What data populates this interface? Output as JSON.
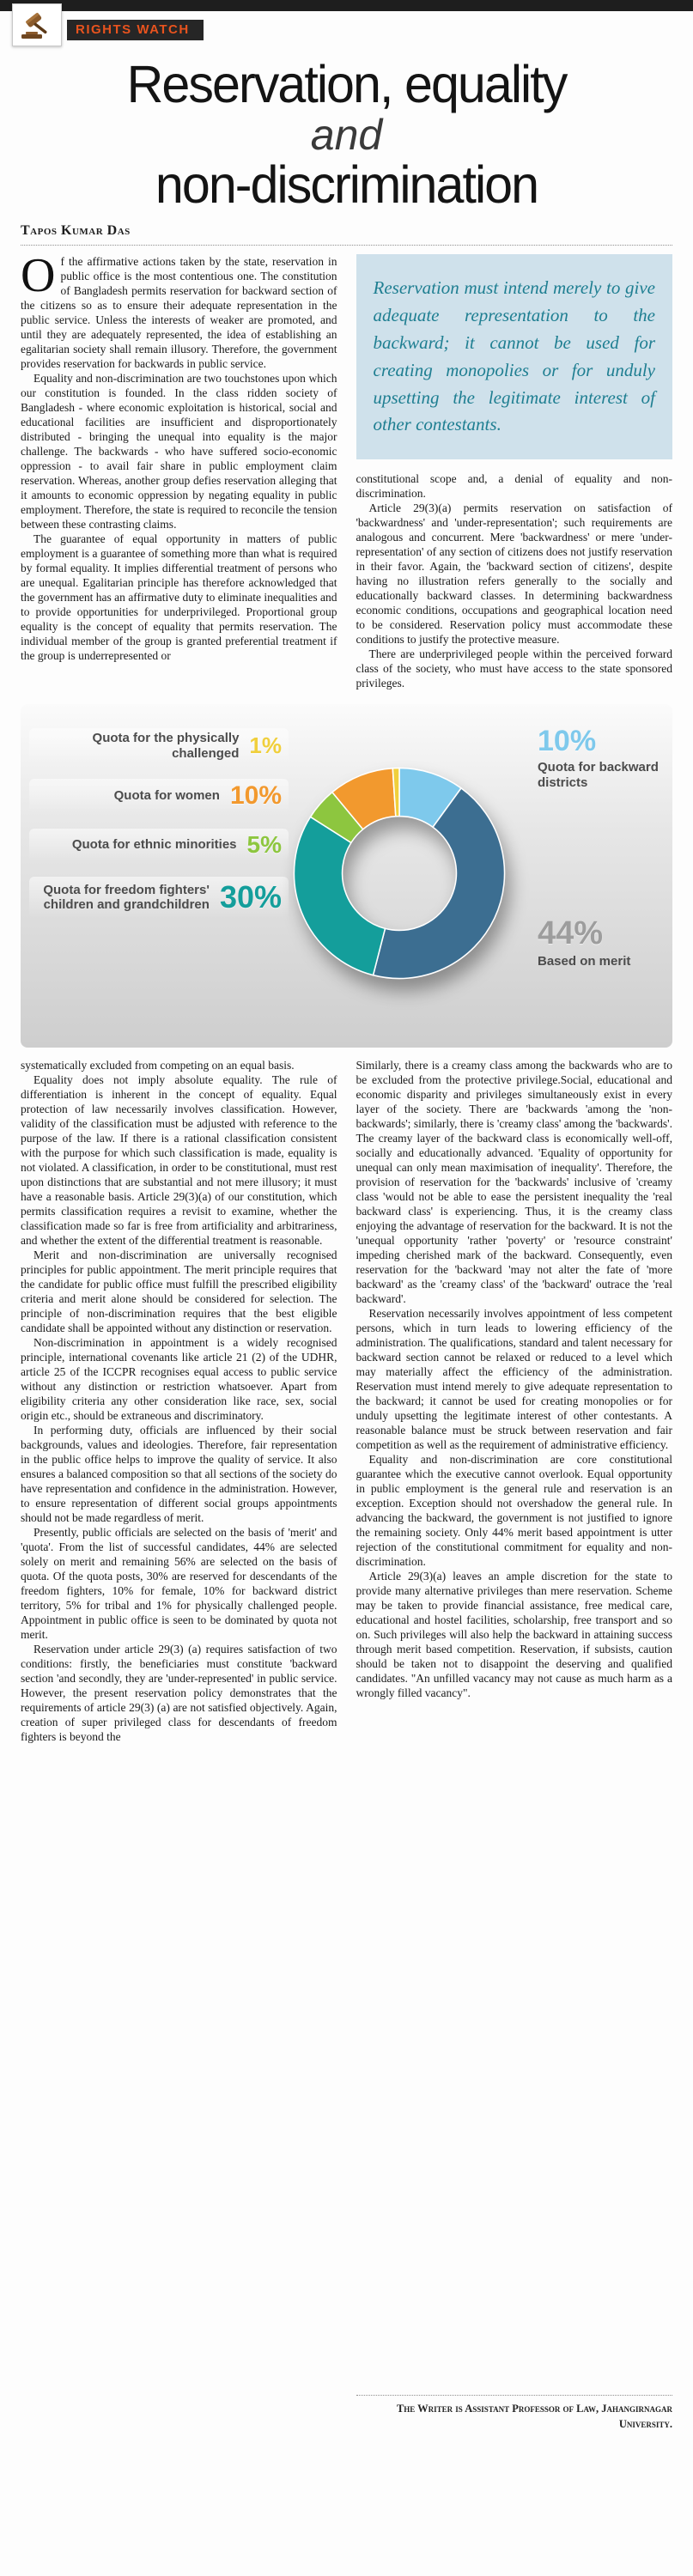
{
  "masthead": {
    "section_label": "RIGHTS WATCH"
  },
  "headline": {
    "line1": "Reservation, equality",
    "line2": "and",
    "line3": "non-discrimination"
  },
  "byline": "Tapos Kumar Das",
  "pull_quote": "Reservation must intend merely to give adequate representation to the backward; it cannot be used for creating monopolies or for unduly upsetting the legitimate interest of other contestants.",
  "article": {
    "col1_top": [
      "Of the affirmative actions taken by the state, reservation in public office is the most contentious one. The constitution of Bangladesh permits reservation for backward section of the citizens so as to ensure their adequate representation in the public service. Unless the interests of weaker are promoted, and until they are adequately represented, the idea of establishing an egalitarian society shall remain illusory. Therefore, the government provides reservation for backwards in public service.",
      "Equality and non-discrimination are two touchstones upon which our constitution is founded. In the class ridden society of Bangladesh - where economic exploitation is historical, social and educational facilities are insufficient and disproportionately distributed - bringing the unequal into equality is the major challenge. The backwards - who have suffered socio-economic oppression - to avail fair share in public employment claim reservation. Whereas, another group defies reservation alleging that it amounts to economic oppression by negating equality in public employment. Therefore, the state is required to reconcile the tension between these contrasting claims.",
      "The guarantee of equal opportunity in matters of public employment is a guarantee of something more than what is required by formal equality. It implies differential treatment of persons who are unequal. Egalitarian principle has therefore acknowledged that the government has an affirmative duty to eliminate inequalities and to provide opportunities for underprivileged. Proportional group equality is the concept of equality that permits reservation. The individual member of the group is granted preferential treatment if the group is underrepresented or"
    ],
    "col2_top": [
      "constitutional scope and, a denial of equality and non-discrimination.",
      "Article 29(3)(a) permits reservation on satisfaction of 'backwardness' and 'under-representation'; such requirements are analogous and concurrent. Mere 'backwardness' or mere 'under- representation' of any section of citizens does not justify reservation in their favor. Again, the 'backward section of citizens', despite having no illustration refers generally to the socially and educationally backward classes. In determining backwardness economic conditions, occupations and geographical location need to be considered. Reservation policy must accommodate these conditions to justify the protective measure.",
      "There are underprivileged people within the perceived forward class of the society, who must have access to the state sponsored privileges."
    ],
    "col1_bottom": [
      "systematically excluded from competing on an equal basis.",
      "Equality does not imply absolute equality. The rule of differentiation is inherent in the concept of equality. Equal protection of law necessarily involves classification. However, validity of the classification must be adjusted with reference to the purpose of the law. If there is a rational classification consistent with the purpose for which such classification is made, equality is not violated. A classification, in order to be constitutional, must rest upon distinctions that are substantial and not mere illusory; it must have a reasonable basis. Article 29(3)(a) of our constitution, which permits classification requires a revisit to examine, whether the classification made so far is free from artificiality and arbitrariness, and whether the extent of the differential treatment is reasonable.",
      "Merit and non-discrimination are universally recognised principles for public appointment. The merit principle requires that the candidate for public office must fulfill the prescribed eligibility criteria and merit alone should be considered for selection. The principle of non-discrimination requires that the best eligible candidate shall be appointed without any distinction or reservation.",
      "Non-discrimination in appointment is a widely recognised principle, international covenants like article 21 (2) of the UDHR, article 25 of the ICCPR recognises equal access to public service without any distinction or restriction whatsoever. Apart from eligibility criteria any other consideration like race, sex, social origin etc., should be extraneous and discriminatory.",
      "In performing duty, officials are influenced by their social backgrounds, values and ideologies. Therefore, fair representation in the public office helps to improve the quality of service. It also ensures a balanced composition so that all sections of the society do have representation and confidence in the administration. However, to ensure representation of different social groups appointments should not be made regardless of merit.",
      "Presently, public officials are selected on the basis of 'merit' and 'quota'. From the list of successful candidates, 44% are selected solely on merit and remaining 56% are selected on the basis of quota. Of the quota posts, 30% are reserved for descendants of the freedom fighters, 10% for female, 10% for backward district territory, 5% for tribal and 1% for physically challenged people. Appointment in public office is seen to be dominated by quota not merit.",
      "Reservation under article 29(3) (a) requires satisfaction of two conditions: firstly, the beneficiaries must constitute 'backward section 'and secondly, they are 'under-represented' in public service. However, the present reservation policy demonstrates that the requirements of article 29(3) (a) are not satisfied objectively. Again, creation of super privileged class for descendants of freedom fighters is beyond the"
    ],
    "col2_bottom": [
      "Similarly, there is a creamy class among the backwards who are to be excluded from the protective privilege.Social, educational and economic disparity and privileges simultaneously exist in every layer of the society. There are 'backwards 'among the 'non-backwards'; similarly, there is 'creamy class' among the 'backwards'. The creamy layer of the backward class is economically well-off, socially and educationally advanced. 'Equality of opportunity for unequal can only mean maximisation of inequality'. Therefore, the provision of reservation for the 'backwards' inclusive of 'creamy class 'would not be able to ease the persistent inequality the 'real backward class' is experiencing. Thus, it is the creamy class enjoying the advantage of reservation for the backward. It is not the 'unequal opportunity 'rather 'poverty' or 'resource constraint' impeding cherished mark of the backward. Consequently, even reservation for the 'backward 'may not alter the fate of 'more backward' as the 'creamy class' of the 'backward' outrace the 'real backward'.",
      "Reservation necessarily involves appointment of less competent persons, which in turn leads to lowering efficiency of the administration. The qualifications, standard and talent necessary for backward section cannot be relaxed or reduced to a level which may materially affect the efficiency of the administration. Reservation must intend merely to give adequate representation to the backward; it cannot be used for creating monopolies or for unduly upsetting the legitimate interest of other contestants. A reasonable balance must be struck between reservation and fair competition as well as the requirement of administrative efficiency.",
      "Equality and non-discrimination are core constitutional guarantee which the executive cannot overlook. Equal opportunity in public employment is the general rule and reservation is an exception. Exception should not overshadow the general rule. In advancing the backward, the government is not justified to ignore the remaining society. Only 44% merit based appointment is utter rejection of the constitutional commitment for equality and non-discrimination.",
      "Article 29(3)(a) leaves an ample discretion for the state to provide many alternative privileges than mere reservation. Scheme may be taken to provide financial assistance, free medical care, educational and hostel facilities, scholarship, free transport and so on. Such privileges will also help the backward in attaining success through merit based competition. Reservation, if subsists, caution should be taken not to disappoint the deserving and qualified candidates. \"An unfilled vacancy may not cause as much harm as a wrongly filled vacancy\"."
    ]
  },
  "footer": {
    "credit": "The Writer is Assistant Professor of Law, Jahangirnagar University."
  },
  "chart_data": {
    "type": "pie",
    "donut": true,
    "title": "",
    "categories": [
      "Quota for the physically challenged",
      "Quota for women",
      "Quota for ethnic minorities",
      "Quota for freedom fighters' children and grandchildren",
      "Quota for backward districts",
      "Based on merit"
    ],
    "values": [
      1,
      10,
      5,
      30,
      10,
      44
    ],
    "pct_labels": [
      "1%",
      "10%",
      "5%",
      "30%",
      "10%",
      "44%"
    ],
    "colors": [
      "#f0cf3c",
      "#f2992e",
      "#8dc63f",
      "#149e9b",
      "#7ec9ec",
      "#3c6e91"
    ],
    "pct_colors": [
      "#f0cf3c",
      "#f2992e",
      "#8dc63f",
      "#149e9b",
      "#7ec9ec",
      "#9d9d9d"
    ],
    "draw_order": [
      4,
      5,
      3,
      2,
      1,
      0
    ],
    "legend_position": "labels around donut",
    "grid": false
  }
}
